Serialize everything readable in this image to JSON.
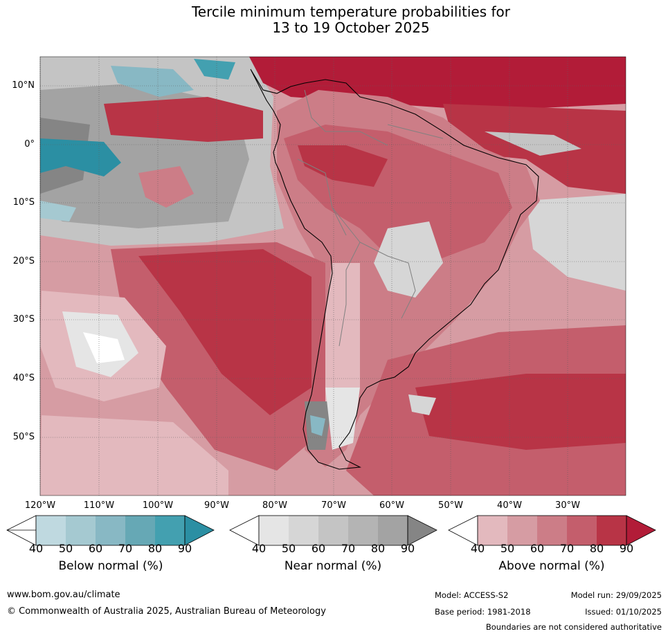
{
  "header": {
    "title_line1": "Tercile minimum temperature probabilities for",
    "title_line2": "13 to 19 October 2025"
  },
  "map": {
    "lat_labels": [
      "10°N",
      "0°",
      "10°S",
      "20°S",
      "30°S",
      "40°S",
      "50°S"
    ],
    "lon_labels": [
      "120°W",
      "110°W",
      "100°W",
      "90°W",
      "80°W",
      "70°W",
      "60°W",
      "50°W",
      "40°W",
      "30°W"
    ]
  },
  "legend": {
    "below": {
      "title": "Below normal (%)",
      "ticks": [
        "40",
        "50",
        "60",
        "70",
        "80",
        "90"
      ],
      "colors": [
        "#bfd9e0",
        "#a5c9d1",
        "#88b8c4",
        "#66a8b5",
        "#43a0b0",
        "#2b8fa3"
      ]
    },
    "near": {
      "title": "Near normal (%)",
      "ticks": [
        "40",
        "50",
        "60",
        "70",
        "80",
        "90"
      ],
      "colors": [
        "#e5e5e5",
        "#d6d6d6",
        "#c4c4c4",
        "#b4b4b4",
        "#a3a3a3",
        "#858585"
      ]
    },
    "above": {
      "title": "Above normal (%)",
      "ticks": [
        "40",
        "50",
        "60",
        "70",
        "80",
        "90"
      ],
      "colors": [
        "#e3b9be",
        "#d69ca3",
        "#cc7d87",
        "#c45e6c",
        "#b83446",
        "#b21c38"
      ]
    }
  },
  "footer": {
    "url": "www.bom.gov.au/climate",
    "copyright": "© Commonwealth of Australia 2025, Australian Bureau of Meteorology",
    "model": "Model: ACCESS-S2",
    "model_run": "Model run: 29/09/2025",
    "base_period": "Base period: 1981-2018",
    "issued": "Issued: 01/10/2025",
    "disclaimer": "Boundaries are not considered authoritative"
  }
}
